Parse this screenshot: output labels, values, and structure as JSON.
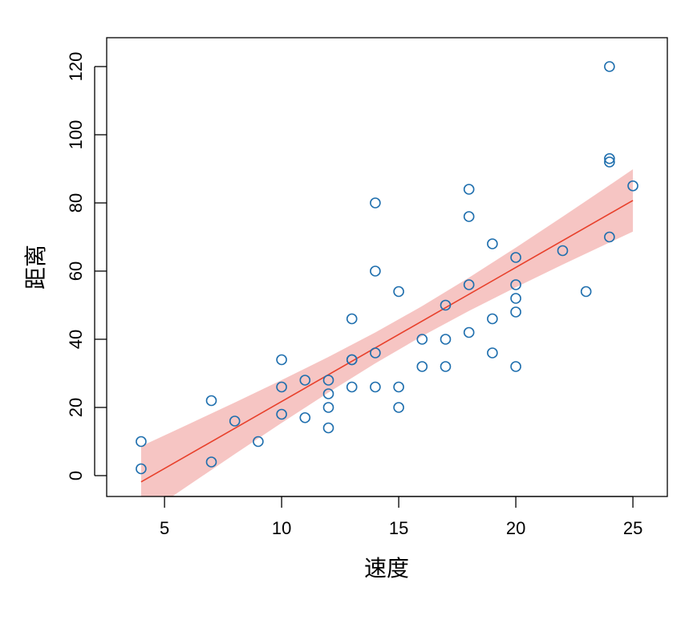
{
  "chart_data": {
    "type": "scatter",
    "xlabel": "速度",
    "ylabel": "距离",
    "x": [
      4,
      4,
      7,
      7,
      8,
      9,
      10,
      10,
      10,
      11,
      11,
      12,
      12,
      12,
      12,
      13,
      13,
      13,
      13,
      14,
      14,
      14,
      14,
      15,
      15,
      15,
      16,
      16,
      17,
      17,
      17,
      18,
      18,
      18,
      18,
      19,
      19,
      19,
      20,
      20,
      20,
      20,
      20,
      22,
      23,
      24,
      24,
      24,
      24,
      25
    ],
    "values": [
      2,
      10,
      4,
      22,
      16,
      10,
      18,
      26,
      34,
      17,
      28,
      14,
      20,
      24,
      28,
      26,
      34,
      34,
      46,
      26,
      36,
      60,
      80,
      20,
      26,
      54,
      32,
      40,
      32,
      40,
      50,
      42,
      56,
      76,
      84,
      36,
      46,
      68,
      32,
      48,
      52,
      56,
      64,
      66,
      54,
      70,
      92,
      93,
      120,
      85
    ],
    "color": "#1f6fae",
    "fit": {
      "x": [
        4,
        25
      ],
      "values": [
        -1.85,
        80.73
      ],
      "color": "#e8412c"
    },
    "band": {
      "x": [
        4,
        6,
        8,
        10,
        12,
        14,
        16,
        18,
        20,
        22,
        24,
        25
      ],
      "lower": [
        -12.33,
        -2.98,
        6.31,
        15.46,
        24.39,
        32.95,
        40.93,
        48.32,
        55.24,
        61.9,
        68.38,
        71.59
      ],
      "upper": [
        8.63,
        15.0,
        21.45,
        28.02,
        34.81,
        41.99,
        49.73,
        58.08,
        66.88,
        75.96,
        85.2,
        89.87
      ],
      "color": "#f4b6b4"
    },
    "xlim": [
      2.53,
      26.47
    ],
    "ylim": [
      -6.12,
      128.47
    ],
    "xticks": [
      5,
      10,
      15,
      20,
      25
    ],
    "yticks": [
      0,
      20,
      40,
      60,
      80,
      100,
      120
    ]
  }
}
